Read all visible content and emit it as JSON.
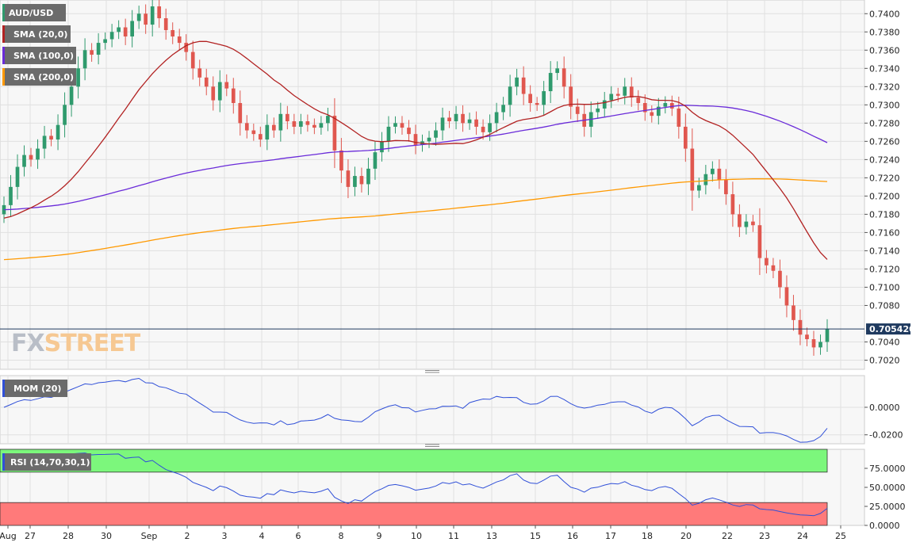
{
  "colors": {
    "background": "#f7f7f7",
    "grid": "#e0e0e0",
    "up_candle": "#2f9a6d",
    "down_candle": "#e0574f",
    "sma20": "#b22222",
    "sma100": "#6a2bd9",
    "sma200": "#ff9900",
    "mom_line": "#3050d8",
    "rsi_line": "#3050d8",
    "rsi_overbought_zone": "#7cf77c",
    "rsi_oversold_zone": "#ff7a7a",
    "price_tag": "#1f3a5f"
  },
  "watermark": {
    "part1": "FX",
    "part2": "STREET"
  },
  "chart_data": [
    {
      "type": "candlestick",
      "title": "AUD/USD",
      "indicators": [
        {
          "name": "SMA (20,0)",
          "color": "#b22222"
        },
        {
          "name": "SMA (100,0)",
          "color": "#6a2bd9"
        },
        {
          "name": "SMA (200,0)",
          "color": "#ff9900"
        }
      ],
      "ylim": [
        0.701,
        0.7415
      ],
      "yticks": [
        "0.7400",
        "0.7380",
        "0.7360",
        "0.7340",
        "0.7320",
        "0.7300",
        "0.7280",
        "0.7260",
        "0.7240",
        "0.7220",
        "0.7200",
        "0.7180",
        "0.7160",
        "0.7140",
        "0.7120",
        "0.7100",
        "0.7080",
        "0.7040",
        "0.7020"
      ],
      "last_price": "0.705420",
      "x_tick_labels": [
        "Aug",
        "27",
        "28",
        "30",
        "Sep",
        "2",
        "3",
        "4",
        "6",
        "8",
        "9",
        "10",
        "11",
        "13",
        "15",
        "16",
        "17",
        "18",
        "20",
        "22",
        "23",
        "24",
        "25"
      ],
      "candle_period": "4h",
      "closes": [
        0.719,
        0.721,
        0.7232,
        0.7245,
        0.724,
        0.7252,
        0.7266,
        0.7262,
        0.7278,
        0.73,
        0.732,
        0.734,
        0.736,
        0.7355,
        0.7368,
        0.7372,
        0.738,
        0.7385,
        0.7375,
        0.7392,
        0.74,
        0.7388,
        0.7408,
        0.7395,
        0.7382,
        0.7375,
        0.7368,
        0.7358,
        0.734,
        0.733,
        0.732,
        0.7305,
        0.7325,
        0.7318,
        0.7302,
        0.728,
        0.7272,
        0.7268,
        0.7262,
        0.7278,
        0.7272,
        0.729,
        0.7282,
        0.7276,
        0.7282,
        0.7278,
        0.7275,
        0.728,
        0.7288,
        0.725,
        0.7228,
        0.721,
        0.7222,
        0.7213,
        0.723,
        0.7248,
        0.726,
        0.7276,
        0.728,
        0.7275,
        0.7268,
        0.7256,
        0.726,
        0.7264,
        0.7272,
        0.7286,
        0.7282,
        0.729,
        0.728,
        0.7284,
        0.7276,
        0.727,
        0.728,
        0.7292,
        0.73,
        0.732,
        0.733,
        0.7312,
        0.7302,
        0.73,
        0.7315,
        0.7335,
        0.734,
        0.732,
        0.7298,
        0.729,
        0.7276,
        0.7292,
        0.7296,
        0.7305,
        0.7312,
        0.731,
        0.732,
        0.7308,
        0.7302,
        0.7292,
        0.7288,
        0.7298,
        0.7302,
        0.7296,
        0.7276,
        0.7252,
        0.7206,
        0.7212,
        0.7224,
        0.723,
        0.7218,
        0.7202,
        0.718,
        0.7166,
        0.7172,
        0.7168,
        0.7132,
        0.7124,
        0.7118,
        0.71,
        0.708,
        0.7064,
        0.7048,
        0.7043,
        0.7034,
        0.704,
        0.7054
      ]
    },
    {
      "type": "line",
      "title": "MOM (20)",
      "ylim": [
        -0.0265,
        0.023
      ],
      "yticks": [
        "0.0000",
        "-0.0200"
      ],
      "x_tick_labels": [
        "Aug",
        "27",
        "28",
        "30",
        "Sep",
        "2",
        "3",
        "4",
        "6",
        "8",
        "9",
        "10",
        "11",
        "13",
        "15",
        "16",
        "17",
        "18",
        "20",
        "22",
        "23",
        "24",
        "25"
      ]
    },
    {
      "type": "line",
      "title": "RSI (14,70,30,1)",
      "ylim": [
        0,
        100
      ],
      "overbought": 70,
      "oversold": 30,
      "yticks": [
        "75.0000",
        "50.0000",
        "25.0000",
        "0.0000"
      ],
      "x_tick_labels": [
        "Aug",
        "27",
        "28",
        "30",
        "Sep",
        "2",
        "3",
        "4",
        "6",
        "8",
        "9",
        "10",
        "11",
        "13",
        "15",
        "16",
        "17",
        "18",
        "20",
        "22",
        "23",
        "24",
        "25"
      ]
    }
  ]
}
